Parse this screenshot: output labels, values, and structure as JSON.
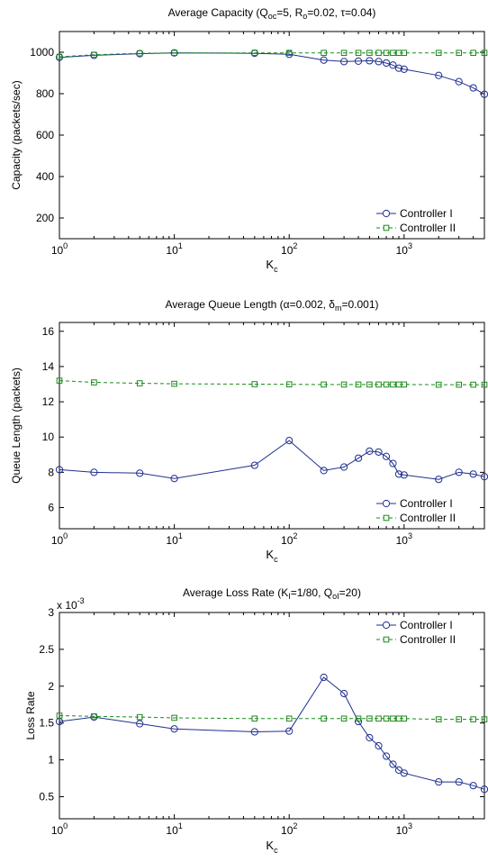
{
  "chart_data": [
    {
      "type": "line",
      "title": "Average Capacity (Q_oc=5, R_o=0.02, τ=0.04)",
      "title_parts": [
        "Average Capacity (Q",
        "oc",
        "=5, R",
        "o",
        "=0.02, τ=0.04)"
      ],
      "xlabel": "K_c",
      "xlabel_main": "K",
      "xlabel_sub": "c",
      "ylabel": "Capacity (packets/sec)",
      "x_scale": "log",
      "xlim": [
        1,
        5000
      ],
      "ylim": [
        100,
        1100
      ],
      "x_ticks": [
        1,
        10,
        100,
        1000
      ],
      "y_ticks": [
        200,
        400,
        600,
        800,
        1000
      ],
      "legend_position": "bottom-right",
      "x": [
        1,
        2,
        5,
        10,
        50,
        100,
        200,
        300,
        400,
        500,
        600,
        700,
        800,
        900,
        1000,
        2000,
        3000,
        4000,
        5000
      ],
      "series": [
        {
          "name": "Controller I",
          "color": "#1f2f8f",
          "style": "solid",
          "marker": "circle",
          "values": [
            975,
            985,
            993,
            997,
            995,
            990,
            962,
            955,
            957,
            959,
            955,
            948,
            938,
            923,
            918,
            888,
            858,
            828,
            797
          ]
        },
        {
          "name": "Controller II",
          "color": "#1a8a1a",
          "style": "dashed",
          "marker": "square",
          "values": [
            978,
            988,
            995,
            997,
            997,
            997,
            997,
            997,
            997,
            997,
            997,
            997,
            997,
            997,
            997,
            997,
            997,
            997,
            997
          ]
        }
      ]
    },
    {
      "type": "line",
      "title": "Average Queue Length (α=0.002, δ_m=0.001)",
      "title_parts": [
        "Average Queue Length (α=0.002, δ",
        "m",
        "=0.001)"
      ],
      "xlabel": "K_c",
      "xlabel_main": "K",
      "xlabel_sub": "c",
      "ylabel": "Queue Length (packets)",
      "x_scale": "log",
      "xlim": [
        1,
        5000
      ],
      "ylim": [
        4.8,
        16.5
      ],
      "x_ticks": [
        1,
        10,
        100,
        1000
      ],
      "y_ticks": [
        6,
        8,
        10,
        12,
        14,
        16
      ],
      "legend_position": "bottom-right",
      "x": [
        1,
        2,
        5,
        10,
        50,
        100,
        200,
        300,
        400,
        500,
        600,
        700,
        800,
        900,
        1000,
        2000,
        3000,
        4000,
        5000
      ],
      "series": [
        {
          "name": "Controller I",
          "color": "#1f2f8f",
          "style": "solid",
          "marker": "circle",
          "values": [
            8.15,
            8.0,
            7.95,
            7.65,
            8.4,
            9.8,
            8.1,
            8.3,
            8.8,
            9.2,
            9.15,
            8.9,
            8.5,
            7.9,
            7.85,
            7.6,
            8.0,
            7.9,
            7.75
          ]
        },
        {
          "name": "Controller II",
          "color": "#1a8a1a",
          "style": "dashed",
          "marker": "square",
          "values": [
            13.2,
            13.1,
            13.05,
            13.02,
            13.0,
            12.99,
            12.98,
            12.98,
            12.98,
            12.98,
            12.98,
            12.98,
            12.98,
            12.98,
            12.98,
            12.97,
            12.97,
            12.97,
            12.97
          ]
        }
      ]
    },
    {
      "type": "line",
      "title": "Average Loss Rate (K_I=1/80, Q_oI=20)",
      "title_parts": [
        "Average Loss Rate (K",
        "I",
        "=1/80, Q",
        "oI",
        "=20)"
      ],
      "xlabel": "K_c",
      "xlabel_main": "K",
      "xlabel_sub": "c",
      "ylabel": "Loss Rate",
      "y_multiplier_label": "x 10",
      "y_multiplier_exp": "-3",
      "x_scale": "log",
      "xlim": [
        1,
        5000
      ],
      "ylim": [
        0.2,
        3.0
      ],
      "x_ticks": [
        1,
        10,
        100,
        1000
      ],
      "y_ticks": [
        0.5,
        1,
        1.5,
        2,
        2.5,
        3
      ],
      "y_tick_labels": [
        "0.5",
        "1",
        "1.5",
        "2",
        "2.5",
        "3"
      ],
      "legend_position": "top-right",
      "x": [
        1,
        2,
        5,
        10,
        50,
        100,
        200,
        300,
        400,
        500,
        600,
        700,
        800,
        900,
        1000,
        2000,
        3000,
        4000,
        5000
      ],
      "series": [
        {
          "name": "Controller I",
          "color": "#1f2f8f",
          "style": "solid",
          "marker": "circle",
          "values": [
            1.52,
            1.58,
            1.49,
            1.42,
            1.38,
            1.39,
            2.12,
            1.9,
            1.52,
            1.3,
            1.19,
            1.05,
            0.94,
            0.86,
            0.82,
            0.7,
            0.7,
            0.65,
            0.6
          ]
        },
        {
          "name": "Controller II",
          "color": "#1a8a1a",
          "style": "dashed",
          "marker": "square",
          "values": [
            1.6,
            1.59,
            1.58,
            1.57,
            1.56,
            1.56,
            1.56,
            1.56,
            1.56,
            1.56,
            1.56,
            1.56,
            1.56,
            1.56,
            1.56,
            1.55,
            1.55,
            1.55,
            1.55
          ]
        }
      ]
    }
  ]
}
